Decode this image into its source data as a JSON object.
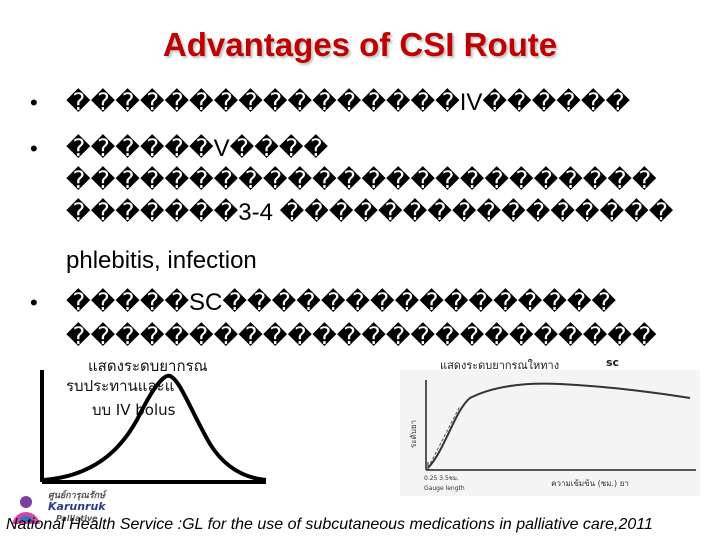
{
  "slide": {
    "title": "Advantages of CSI Route",
    "bullets": [
      {
        "lines": [
          "����������������IV������"
        ]
      },
      {
        "lines": [
          "������V����",
          "������������������������",
          "�������3-4 ����������������",
          "phlebitis, infection"
        ]
      },
      {
        "lines": [
          "�����SC����������������",
          "������������������������"
        ]
      }
    ]
  },
  "figures": {
    "left_caption": [
      "แสดงระดบยากรณ",
      "รบประทานและแ",
      "บบ IV bolus"
    ],
    "right_caption": "แสดงระดบยากรณใหทาง",
    "right_caption_tag": "sc",
    "right_ylabel": "ระดับยา",
    "right_xlabel": "ความเข้มข้น (ชม.) ยา",
    "right_xnote": "0.25  3.5ชม.",
    "right_xnote2": "Gauge length"
  },
  "logo": {
    "line1": "ศูนย์การุณรักษ์",
    "line2": "Karunruk",
    "line3": "Palliative"
  },
  "footer": "National Health Service :GL for the use of subcutaneous medications in palliative care,2011",
  "colors": {
    "title": "#c00000",
    "curve": "#000000"
  }
}
